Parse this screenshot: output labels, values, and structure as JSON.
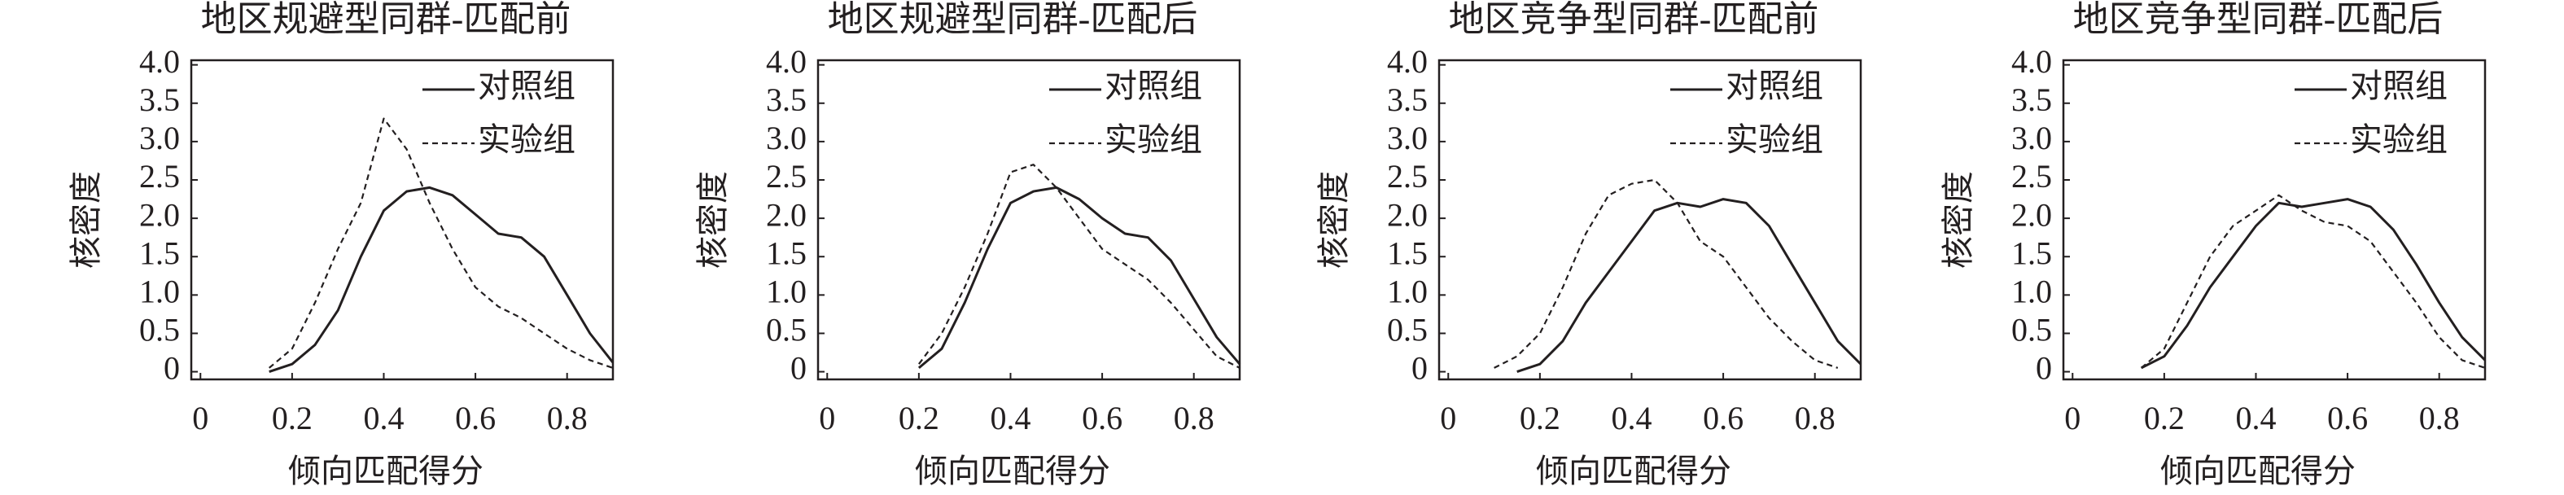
{
  "chart_data": [
    {
      "type": "line",
      "title": "地区规避型同群-匹配前",
      "x_label": "倾向匹配得分",
      "y_label": "核密度",
      "x": [
        0.15,
        0.2,
        0.25,
        0.3,
        0.35,
        0.4,
        0.45,
        0.5,
        0.55,
        0.6,
        0.65,
        0.7,
        0.75,
        0.8,
        0.85,
        0.9
      ],
      "series": [
        {
          "name": "对照组",
          "color": "#231f20",
          "line_style": "solid",
          "values": [
            0,
            0.1,
            0.35,
            0.8,
            1.5,
            2.1,
            2.35,
            2.4,
            2.3,
            2.05,
            1.8,
            1.75,
            1.5,
            1.0,
            0.5,
            0.12
          ]
        },
        {
          "name": "实验组",
          "color": "#231f20",
          "line_style": "dashed",
          "values": [
            0.05,
            0.3,
            0.9,
            1.6,
            2.2,
            3.3,
            2.9,
            2.2,
            1.6,
            1.1,
            0.85,
            0.7,
            0.5,
            0.3,
            0.15,
            0.05
          ]
        }
      ],
      "xlim": [
        -0.02,
        0.9
      ],
      "ylim": [
        -0.1,
        4.06
      ],
      "xticks": [
        0,
        0.2,
        0.4,
        0.6,
        0.8
      ],
      "yticks": [
        0,
        0.5,
        {
          "value": 1,
          "label": "1.0"
        },
        1.5,
        {
          "value": 2,
          "label": "2.0"
        },
        2.5,
        {
          "value": 3,
          "label": "3.0"
        },
        3.5,
        {
          "value": 4,
          "label": "4.0"
        }
      ],
      "legend": "upper right"
    },
    {
      "type": "line",
      "title": "地区规避型同群-匹配后",
      "x_label": "倾向匹配得分",
      "y_label": "核密度",
      "x": [
        0.2,
        0.25,
        0.3,
        0.35,
        0.4,
        0.45,
        0.5,
        0.55,
        0.6,
        0.65,
        0.7,
        0.75,
        0.8,
        0.85,
        0.9
      ],
      "series": [
        {
          "name": "对照组",
          "color": "#231f20",
          "line_style": "solid",
          "values": [
            0.05,
            0.3,
            0.9,
            1.6,
            2.2,
            2.35,
            2.4,
            2.25,
            2.0,
            1.8,
            1.75,
            1.45,
            0.95,
            0.45,
            0.1
          ]
        },
        {
          "name": "实验组",
          "color": "#231f20",
          "line_style": "dashed",
          "values": [
            0.1,
            0.5,
            1.1,
            1.8,
            2.6,
            2.7,
            2.4,
            2.0,
            1.6,
            1.4,
            1.2,
            0.9,
            0.55,
            0.2,
            0.05
          ]
        }
      ],
      "xlim": [
        -0.02,
        0.9
      ],
      "ylim": [
        -0.1,
        4.06
      ],
      "xticks": [
        0,
        0.2,
        0.4,
        0.6,
        0.8
      ],
      "yticks": [
        0,
        0.5,
        {
          "value": 1,
          "label": "1.0"
        },
        1.5,
        {
          "value": 2,
          "label": "2.0"
        },
        2.5,
        {
          "value": 3,
          "label": "3.0"
        },
        3.5,
        {
          "value": 4,
          "label": "4.0"
        }
      ],
      "legend": "upper right"
    },
    {
      "type": "line",
      "title": "地区竞争型同群-匹配前",
      "x_label": "倾向匹配得分",
      "y_label": "核密度",
      "x": [
        0.1,
        0.15,
        0.2,
        0.25,
        0.3,
        0.35,
        0.4,
        0.45,
        0.5,
        0.55,
        0.6,
        0.65,
        0.7,
        0.75,
        0.8,
        0.85,
        0.9
      ],
      "series": [
        {
          "name": "对照组",
          "color": "#231f20",
          "line_style": "solid",
          "values": [
            null,
            0,
            0.1,
            0.4,
            0.9,
            1.3,
            1.7,
            2.1,
            2.2,
            2.15,
            2.25,
            2.2,
            1.9,
            1.4,
            0.9,
            0.4,
            0.1
          ]
        },
        {
          "name": "实验组",
          "color": "#231f20",
          "line_style": "dashed",
          "values": [
            0.05,
            0.2,
            0.5,
            1.1,
            1.8,
            2.3,
            2.45,
            2.5,
            2.2,
            1.7,
            1.5,
            1.1,
            0.7,
            0.4,
            0.15,
            0.05,
            null
          ]
        }
      ],
      "xlim": [
        -0.02,
        0.9
      ],
      "ylim": [
        -0.1,
        4.06
      ],
      "xticks": [
        0,
        0.2,
        0.4,
        0.6,
        0.8
      ],
      "yticks": [
        0,
        0.5,
        {
          "value": 1,
          "label": "1.0"
        },
        1.5,
        {
          "value": 2,
          "label": "2.0"
        },
        2.5,
        {
          "value": 3,
          "label": "3.0"
        },
        3.5,
        {
          "value": 4,
          "label": "4.0"
        }
      ],
      "legend": "upper right"
    },
    {
      "type": "line",
      "title": "地区竞争型同群-匹配后",
      "x_label": "倾向匹配得分",
      "y_label": "核密度",
      "x": [
        0.15,
        0.2,
        0.25,
        0.3,
        0.35,
        0.4,
        0.45,
        0.5,
        0.55,
        0.6,
        0.65,
        0.7,
        0.75,
        0.8,
        0.85,
        0.9
      ],
      "series": [
        {
          "name": "对照组",
          "color": "#231f20",
          "line_style": "solid",
          "values": [
            0.05,
            0.2,
            0.6,
            1.1,
            1.5,
            1.9,
            2.2,
            2.15,
            2.2,
            2.25,
            2.15,
            1.85,
            1.4,
            0.9,
            0.45,
            0.15
          ]
        },
        {
          "name": "实验组",
          "color": "#231f20",
          "line_style": "dashed",
          "values": [
            0.05,
            0.3,
            0.9,
            1.5,
            1.9,
            2.1,
            2.3,
            2.1,
            1.95,
            1.9,
            1.7,
            1.3,
            0.9,
            0.45,
            0.15,
            0.05
          ]
        }
      ],
      "xlim": [
        -0.02,
        0.9
      ],
      "ylim": [
        -0.1,
        4.06
      ],
      "xticks": [
        0,
        0.2,
        0.4,
        0.6,
        0.8
      ],
      "yticks": [
        0,
        0.5,
        {
          "value": 1,
          "label": "1.0"
        },
        1.5,
        {
          "value": 2,
          "label": "2.0"
        },
        2.5,
        {
          "value": 3,
          "label": "3.0"
        },
        3.5,
        {
          "value": 4,
          "label": "4.0"
        }
      ],
      "legend": "upper right"
    }
  ]
}
